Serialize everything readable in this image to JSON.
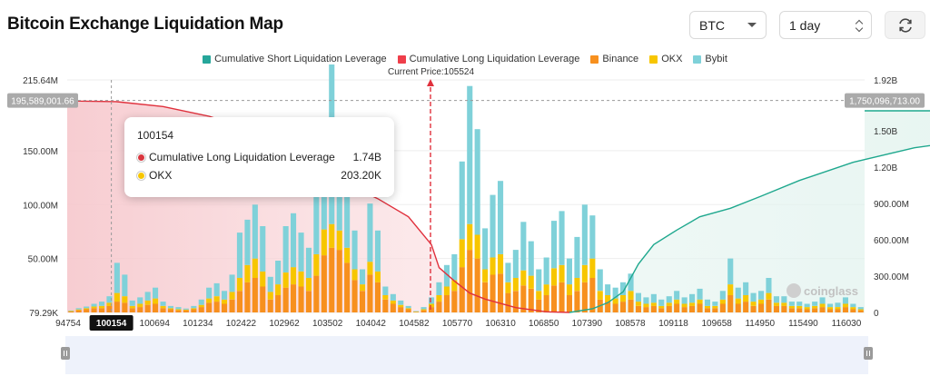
{
  "page": {
    "title": "Bitcoin Exchange Liquidation Map"
  },
  "controls": {
    "symbol": "BTC",
    "range": "1 day"
  },
  "legend": [
    {
      "label": "Cumulative Short Liquidation Leverage",
      "color": "#26a69a"
    },
    {
      "label": "Cumulative Long Liquidation Leverage",
      "color": "#ef3e4a"
    },
    {
      "label": "Binance",
      "color": "#f7901e"
    },
    {
      "label": "OKX",
      "color": "#f7c600"
    },
    {
      "label": "Bybit",
      "color": "#7fd1d9"
    }
  ],
  "current_price_label": "Current Price:105524",
  "tooltip": {
    "title": "100154",
    "rows": [
      {
        "label": "Cumulative Long Liquidation Leverage",
        "value": "1.74B",
        "color": "#d9363e"
      },
      {
        "label": "OKX",
        "value": "203.20K",
        "color": "#f7c600"
      }
    ]
  },
  "watermark": "coinglass",
  "chart_data": {
    "type": "bar",
    "x_tick_labels": [
      "94754",
      "100154",
      "100694",
      "101234",
      "102422",
      "102962",
      "103502",
      "104042",
      "104582",
      "105770",
      "106310",
      "106850",
      "107390",
      "108578",
      "109118",
      "109658",
      "114950",
      "115490",
      "116030"
    ],
    "left_axis": {
      "ticks": [
        "79.29K",
        "50.00M",
        "100.00M",
        "150.00M",
        "215.64M"
      ],
      "min": 0,
      "max": 215640000,
      "crosshair_label": "195,589,001.66"
    },
    "right_axis": {
      "ticks": [
        "0",
        "300.00M",
        "600.00M",
        "900.00M",
        "1.20B",
        "1.50B",
        "1.92B"
      ],
      "min": 0,
      "max": 1920000000,
      "crosshair_label": "1,750,096,713.00"
    },
    "current_price": 105524,
    "highlighted_x": "100154",
    "stacks": [
      [
        1,
        0.3,
        0.5
      ],
      [
        2,
        0.8,
        1.2
      ],
      [
        3,
        1,
        1.5
      ],
      [
        4,
        1.5,
        2.5
      ],
      [
        4,
        2,
        4
      ],
      [
        6,
        3,
        6
      ],
      [
        10,
        8,
        28
      ],
      [
        9,
        6,
        20
      ],
      [
        4,
        2,
        5
      ],
      [
        5,
        3,
        6
      ],
      [
        7,
        4,
        8
      ],
      [
        8,
        5,
        10
      ],
      [
        4,
        2,
        4
      ],
      [
        3,
        1,
        2
      ],
      [
        2,
        1,
        2
      ],
      [
        2,
        0.6,
        1
      ],
      [
        3,
        1,
        2
      ],
      [
        5,
        2,
        5
      ],
      [
        9,
        4,
        10
      ],
      [
        10,
        5,
        12
      ],
      [
        8,
        4,
        8
      ],
      [
        12,
        7,
        16
      ],
      [
        20,
        12,
        42
      ],
      [
        28,
        16,
        42
      ],
      [
        32,
        18,
        50
      ],
      [
        24,
        14,
        42
      ],
      [
        12,
        7,
        14
      ],
      [
        16,
        10,
        22
      ],
      [
        23,
        14,
        43
      ],
      [
        26,
        16,
        50
      ],
      [
        24,
        14,
        36
      ],
      [
        20,
        12,
        28
      ],
      [
        34,
        20,
        56
      ],
      [
        53,
        24,
        58
      ],
      [
        60,
        22,
        148
      ],
      [
        58,
        18,
        88
      ],
      [
        46,
        14,
        54
      ],
      [
        30,
        10,
        36
      ],
      [
        20,
        6,
        14
      ],
      [
        35,
        12,
        54
      ],
      [
        28,
        10,
        38
      ],
      [
        12,
        4,
        8
      ],
      [
        8,
        3,
        6
      ],
      [
        5,
        2,
        4
      ],
      [
        3,
        1,
        2
      ],
      [
        0.5,
        0.3,
        0.5
      ],
      [
        2,
        1,
        2
      ],
      [
        5,
        3,
        6
      ],
      [
        10,
        6,
        12
      ],
      [
        16,
        8,
        20
      ],
      [
        20,
        10,
        24
      ],
      [
        42,
        26,
        72
      ],
      [
        58,
        24,
        128
      ],
      [
        50,
        22,
        98
      ],
      [
        28,
        12,
        38
      ],
      [
        35,
        16,
        58
      ],
      [
        36,
        18,
        68
      ],
      [
        18,
        10,
        18
      ],
      [
        20,
        12,
        26
      ],
      [
        25,
        14,
        45
      ],
      [
        22,
        12,
        32
      ],
      [
        12,
        8,
        20
      ],
      [
        16,
        10,
        25
      ],
      [
        25,
        16,
        44
      ],
      [
        28,
        16,
        50
      ],
      [
        16,
        10,
        24
      ],
      [
        20,
        12,
        38
      ],
      [
        28,
        16,
        56
      ],
      [
        32,
        18,
        40
      ],
      [
        12,
        8,
        20
      ],
      [
        10,
        6,
        10
      ],
      [
        8,
        5,
        10
      ],
      [
        10,
        6,
        12
      ],
      [
        12,
        8,
        16
      ],
      [
        6,
        4,
        8
      ],
      [
        5,
        3,
        6
      ],
      [
        6,
        3,
        8
      ],
      [
        4,
        2,
        6
      ],
      [
        6,
        3,
        6
      ],
      [
        8,
        4,
        8
      ],
      [
        5,
        3,
        6
      ],
      [
        6,
        3,
        8
      ],
      [
        8,
        4,
        10
      ],
      [
        4,
        2,
        6
      ],
      [
        4,
        2,
        4
      ],
      [
        8,
        4,
        8
      ],
      [
        16,
        10,
        24
      ],
      [
        8,
        5,
        10
      ],
      [
        10,
        6,
        12
      ],
      [
        6,
        4,
        8
      ],
      [
        8,
        4,
        8
      ],
      [
        12,
        6,
        14
      ],
      [
        6,
        3,
        6
      ],
      [
        6,
        3,
        6
      ],
      [
        4,
        2,
        4
      ],
      [
        4,
        2,
        4
      ],
      [
        3,
        2,
        3
      ],
      [
        4,
        2,
        4
      ],
      [
        5,
        3,
        6
      ],
      [
        3,
        2,
        3
      ],
      [
        3,
        2,
        4
      ],
      [
        5,
        3,
        6
      ],
      [
        3,
        2,
        3
      ],
      [
        2,
        1,
        2
      ]
    ],
    "long_curve": [
      [
        0,
        1750
      ],
      [
        1,
        1745
      ],
      [
        6,
        1740
      ],
      [
        12,
        1700
      ],
      [
        18,
        1620
      ],
      [
        24,
        1500
      ],
      [
        28,
        1390
      ],
      [
        32,
        1200
      ],
      [
        36,
        1060
      ],
      [
        40,
        940
      ],
      [
        44,
        790
      ],
      [
        47,
        560
      ],
      [
        48,
        370
      ],
      [
        50,
        260
      ],
      [
        52,
        160
      ],
      [
        54,
        110
      ],
      [
        58,
        40
      ],
      [
        62,
        5
      ],
      [
        65,
        0
      ]
    ],
    "short_curve": [
      [
        65,
        0
      ],
      [
        68,
        30
      ],
      [
        70,
        80
      ],
      [
        72,
        170
      ],
      [
        74,
        400
      ],
      [
        76,
        560
      ],
      [
        79,
        680
      ],
      [
        82,
        790
      ],
      [
        86,
        860
      ],
      [
        90,
        960
      ],
      [
        95,
        1090
      ],
      [
        102,
        1240
      ],
      [
        110,
        1360
      ],
      [
        118,
        1430
      ],
      [
        126,
        1490
      ],
      [
        133,
        1540
      ],
      [
        140,
        1580
      ],
      [
        150,
        1610
      ],
      [
        160,
        1630
      ],
      [
        171,
        1660
      ],
      [
        172,
        1665
      ]
    ]
  }
}
